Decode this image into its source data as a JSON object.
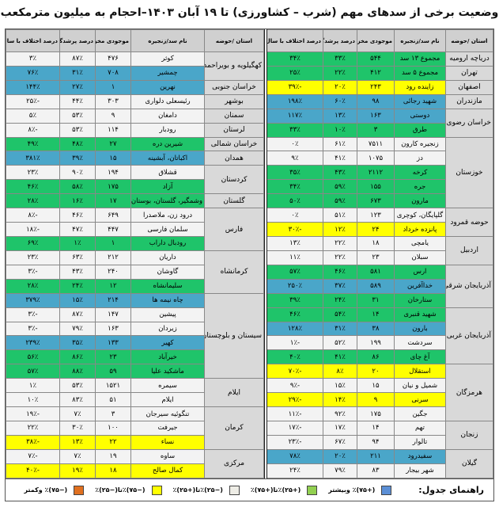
{
  "title": "وضعیت برخی از سدهای مهم (شرب – کشاورزی) تا ۱۹ آبان ۱۴۰۳–احجام به میلیون مترمکعب",
  "headers": {
    "region": "استان /حوضه",
    "dam": "نام سد/زنجیره",
    "volume": "موجودی مخزن",
    "fill": "درصد پرشدگی",
    "diff": "درصد اختلاف با سال قبل"
  },
  "colors": {
    "green": "#1fc46a",
    "blue": "#4aa6c9",
    "yellow": "#ffff00",
    "white": "#f3f3f3",
    "region": "#d9d9d9"
  },
  "right_table": [
    {
      "region": "دریاچه ارومیه",
      "dams": [
        {
          "name": "مجموع ۱۳ سد",
          "volume": "۵۴۴",
          "fill": "۳۳٪",
          "diff": "۳۴٪",
          "color": "green"
        }
      ]
    },
    {
      "region": "تهران",
      "dams": [
        {
          "name": "مجموع ۵ سد",
          "volume": "۴۱۲",
          "fill": "۲۲٪",
          "diff": "۲۵٪",
          "color": "green"
        }
      ]
    },
    {
      "region": "اصفهان",
      "dams": [
        {
          "name": "زاینده رود",
          "volume": "۲۴۳",
          "fill": "۲۰٪",
          "diff": "-۳۹٪",
          "color": "yellow"
        }
      ]
    },
    {
      "region": "مازندران",
      "dams": [
        {
          "name": "شهید رجائی",
          "volume": "۹۸",
          "fill": "۶۰٪",
          "diff": "۱۹۸٪",
          "color": "blue"
        }
      ]
    },
    {
      "region": "خراسان رضوی",
      "dams": [
        {
          "name": "دوستی",
          "volume": "۱۶۳",
          "fill": "۱۳٪",
          "diff": "۱۱۷٪",
          "color": "blue"
        },
        {
          "name": "طرق",
          "volume": "۳",
          "fill": "۱۰٪",
          "diff": "۳۳٪",
          "color": "green"
        }
      ]
    },
    {
      "region": "خوزستان",
      "dams": [
        {
          "name": "زنجیره کارون",
          "volume": "۷۵۱۱",
          "fill": "۶۱٪",
          "diff": "۰٪",
          "color": "white"
        },
        {
          "name": "دز",
          "volume": "۱۰۷۵",
          "fill": "۴۱٪",
          "diff": "۹٪",
          "color": "white"
        },
        {
          "name": "کرخه",
          "volume": "۲۱۱۲",
          "fill": "۴۳٪",
          "diff": "۳۵٪",
          "color": "green"
        },
        {
          "name": "جره",
          "volume": "۱۵۵",
          "fill": "۵۹٪",
          "diff": "۳۴٪",
          "color": "green"
        },
        {
          "name": "مارون",
          "volume": "۶۷۳",
          "fill": "۵۹٪",
          "diff": "۵۰٪",
          "color": "green"
        }
      ]
    },
    {
      "region": "حوضه قمرود",
      "dams": [
        {
          "name": "گلپایگان، کوچری",
          "volume": "۱۲۳",
          "fill": "۵۱٪",
          "diff": "۰٪",
          "color": "white"
        },
        {
          "name": "پانزده خرداد",
          "volume": "۲۴",
          "fill": "۱۲٪",
          "diff": "-۳۰٪",
          "color": "yellow"
        }
      ]
    },
    {
      "region": "اردبیل",
      "dams": [
        {
          "name": "یامچی",
          "volume": "۱۸",
          "fill": "۲۲٪",
          "diff": "۱۳٪",
          "color": "white"
        },
        {
          "name": "سبلان",
          "volume": "۲۳",
          "fill": "۲۲٪",
          "diff": "۱۱٪",
          "color": "white"
        }
      ]
    },
    {
      "region": "آذربایجان شرقی",
      "dams": [
        {
          "name": "ارس",
          "volume": "۵۸۱",
          "fill": "۴۶٪",
          "diff": "۵۷٪",
          "color": "green"
        },
        {
          "name": "خداآفرین",
          "volume": "۵۸۹",
          "fill": "۳۷٪",
          "diff": "۲۵۰٪",
          "color": "blue"
        },
        {
          "name": "ستارخان",
          "volume": "۳۱",
          "fill": "۲۴٪",
          "diff": "۳۹٪",
          "color": "green"
        }
      ]
    },
    {
      "region": "آذربایجان غربی",
      "dams": [
        {
          "name": "شهید قنبری",
          "volume": "۱۴",
          "fill": "۵۴٪",
          "diff": "۴۶٪",
          "color": "green"
        },
        {
          "name": "بارون",
          "volume": "۳۸",
          "fill": "۳۱٪",
          "diff": "۱۲۸٪",
          "color": "blue"
        },
        {
          "name": "سردشت",
          "volume": "۱۹۹",
          "fill": "۵۲٪",
          "diff": "-۱٪",
          "color": "white"
        },
        {
          "name": "آغ چای",
          "volume": "۸۶",
          "fill": "۴۱٪",
          "diff": "۴۰٪",
          "color": "green"
        }
      ]
    },
    {
      "region": "هرمزگان",
      "dams": [
        {
          "name": "استقلال",
          "volume": "۲۰",
          "fill": "۸٪",
          "diff": "-۷۰٪",
          "color": "yellow"
        },
        {
          "name": "شمیل و نیان",
          "volume": "۱۵",
          "fill": "۱۵٪",
          "diff": "-۹٪",
          "color": "white"
        },
        {
          "name": "سرنی",
          "volume": "۹",
          "fill": "۱۴٪",
          "diff": "-۲۹٪",
          "color": "yellow"
        },
        {
          "name": "جگین",
          "volume": "۱۷۵",
          "fill": "۹۲٪",
          "diff": "-۱۱٪",
          "color": "white"
        }
      ]
    },
    {
      "region": "زنجان",
      "dams": [
        {
          "name": "تهم",
          "volume": "۱۴",
          "fill": "۱۷٪",
          "diff": "-۱۷٪",
          "color": "white"
        },
        {
          "name": "تالوار",
          "volume": "۹۴",
          "fill": "۶۷٪",
          "diff": "-۲۳٪",
          "color": "white"
        }
      ]
    },
    {
      "region": "گیلان",
      "dams": [
        {
          "name": "سفیدرود",
          "volume": "۲۱۱",
          "fill": "۲۰٪",
          "diff": "۷۸٪",
          "color": "blue"
        },
        {
          "name": "شهر بیجار",
          "volume": "۸۳",
          "fill": "۷۹٪",
          "diff": "۲۴٪",
          "color": "white"
        }
      ]
    }
  ],
  "left_table": [
    {
      "region": "کهگیلویه و بویراحمد",
      "dams": [
        {
          "name": "کوثر",
          "volume": "۴۷۶",
          "fill": "۸۷٪",
          "diff": "۳٪",
          "color": "white"
        },
        {
          "name": "چمشیر",
          "volume": "۷۰۸",
          "fill": "۳۱٪",
          "diff": "۷۶٪",
          "color": "blue"
        }
      ]
    },
    {
      "region": "خراسان جنوبی",
      "dams": [
        {
          "name": "نهرین",
          "volume": "۱",
          "fill": "۲۷٪",
          "diff": "۱۴۴٪",
          "color": "blue"
        }
      ]
    },
    {
      "region": "بوشهر",
      "dams": [
        {
          "name": "رئیسعلی دلواری",
          "volume": "۳۰۳",
          "fill": "۴۴٪",
          "diff": "-۲۵٪",
          "color": "white"
        }
      ]
    },
    {
      "region": "سمنان",
      "dams": [
        {
          "name": "دامغان",
          "volume": "۹",
          "fill": "۵۳٪",
          "diff": "۵٪",
          "color": "white"
        }
      ]
    },
    {
      "region": "لرستان",
      "dams": [
        {
          "name": "رودبار",
          "volume": "۱۱۴",
          "fill": "۵۳٪",
          "diff": "-۸٪",
          "color": "white"
        }
      ]
    },
    {
      "region": "خراسان شمالی",
      "dams": [
        {
          "name": "شیرین دره",
          "volume": "۲۷",
          "fill": "۴۸٪",
          "diff": "۴۹٪",
          "color": "green"
        }
      ]
    },
    {
      "region": "همدان",
      "dams": [
        {
          "name": "اکباتان، آبشینه",
          "volume": "۱۵",
          "fill": "۳۹٪",
          "diff": "۳۸۱٪",
          "color": "blue"
        }
      ]
    },
    {
      "region": "کردستان",
      "dams": [
        {
          "name": "قشلاق",
          "volume": "۱۹۴",
          "fill": "۹۰٪",
          "diff": "۲۳٪",
          "color": "white"
        },
        {
          "name": "آزاد",
          "volume": "۱۷۵",
          "fill": "۵۸٪",
          "diff": "۴۶٪",
          "color": "green"
        }
      ]
    },
    {
      "region": "گلستان",
      "dams": [
        {
          "name": "وشمگیر، گلستان، بوستان",
          "volume": "۱۷",
          "fill": "۱۶٪",
          "diff": "۲۸٪",
          "color": "green"
        }
      ]
    },
    {
      "region": "فارس",
      "dams": [
        {
          "name": "درود زن، ملاصدرا",
          "volume": "۶۴۹",
          "fill": "۴۶٪",
          "diff": "-۸٪",
          "color": "white"
        },
        {
          "name": "سلمان فارسی",
          "volume": "۴۴۷",
          "fill": "۴۷٪",
          "diff": "-۱۸٪",
          "color": "white"
        },
        {
          "name": "رودبال داراب",
          "volume": "۱",
          "fill": "۱٪",
          "diff": "۶۹٪",
          "color": "green"
        }
      ]
    },
    {
      "region": "کرمانشاه",
      "dams": [
        {
          "name": "داریان",
          "volume": "۲۱۲",
          "fill": "۶۳٪",
          "diff": "۲۳٪",
          "color": "white"
        },
        {
          "name": "گاوشان",
          "volume": "۲۴۰",
          "fill": "۴۳٪",
          "diff": "-۳٪",
          "color": "white"
        },
        {
          "name": "سلیمانشاه",
          "volume": "۱۲",
          "fill": "۲۴٪",
          "diff": "۲۸٪",
          "color": "green"
        }
      ]
    },
    {
      "region": "سیستان و بلوچستان",
      "dams": [
        {
          "name": "چاه نیمه ها",
          "volume": "۲۱۴",
          "fill": "۱۵٪",
          "diff": "۳۷۹٪",
          "color": "blue"
        },
        {
          "name": "پیشین",
          "volume": "۱۴۷",
          "fill": "۸۷٪",
          "diff": "-۳٪",
          "color": "white"
        },
        {
          "name": "زیردان",
          "volume": "۱۶۳",
          "fill": "۷۹٪",
          "diff": "-۳٪",
          "color": "white"
        },
        {
          "name": "کهیر",
          "volume": "۱۳۳",
          "fill": "۳۵٪",
          "diff": "۲۳۹٪",
          "color": "blue"
        },
        {
          "name": "خیرآباد",
          "volume": "۲۳",
          "fill": "۸۶٪",
          "diff": "۵۶٪",
          "color": "green"
        },
        {
          "name": "ماشکید علیا",
          "volume": "۵۹",
          "fill": "۸۸٪",
          "diff": "۵۷٪",
          "color": "green"
        }
      ]
    },
    {
      "region": "ایلام",
      "dams": [
        {
          "name": "سیمره",
          "volume": "۱۵۲۱",
          "fill": "۵۳٪",
          "diff": "۱٪",
          "color": "white"
        },
        {
          "name": "ایلام",
          "volume": "۵۱",
          "fill": "۸۳٪",
          "diff": "۱۰٪",
          "color": "white"
        }
      ]
    },
    {
      "region": "کرمان",
      "dams": [
        {
          "name": "تنگوئیه سیرجان",
          "volume": "۳",
          "fill": "۷٪",
          "diff": "-۱۹٪",
          "color": "white"
        },
        {
          "name": "جیرفت",
          "volume": "۱۰۰",
          "fill": "۳۰٪",
          "diff": "۲۲٪",
          "color": "white"
        },
        {
          "name": "نساء",
          "volume": "۲۲",
          "fill": "۱۳٪",
          "diff": "-۳۸٪",
          "color": "yellow"
        }
      ]
    },
    {
      "region": "مرکزی",
      "dams": [
        {
          "name": "ساوه",
          "volume": "۱۹",
          "fill": "۷٪",
          "diff": "-۷٪",
          "color": "white"
        },
        {
          "name": "کمال صالح",
          "volume": "۱۸",
          "fill": "۱۹٪",
          "diff": "-۴۰٪",
          "color": "yellow"
        }
      ]
    }
  ],
  "legend": {
    "title": "راهنمای جدول:",
    "items": [
      {
        "label": "(+۷۵)٪ وبیشتر",
        "color": "#5b8fd6"
      },
      {
        "label": "(+۲۵)٪تا(+۷۵)٪",
        "color": "#92d050"
      },
      {
        "label": "(−۲۵)٪تا(+۲۵)٪",
        "color": "#eeede6"
      },
      {
        "label": "(−۷۵)٪تا(−۲۵)٪",
        "color": "#ffff00"
      },
      {
        "label": "(−۷۵)٪ وکمتر",
        "color": "#e07020"
      }
    ]
  }
}
